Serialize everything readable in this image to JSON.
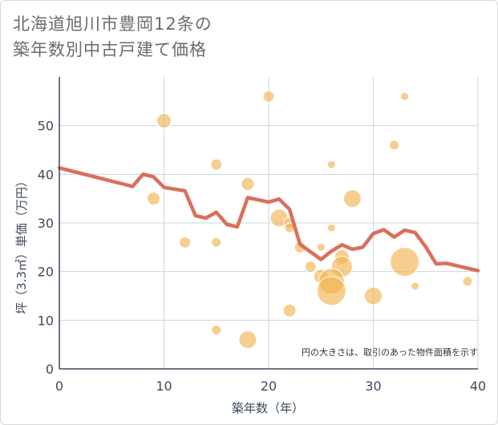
{
  "title_line1": "北海道旭川市豊岡12条の",
  "title_line2": "築年数別中古戸建て価格",
  "chart_data": {
    "type": "scatter",
    "title": "北海道旭川市豊岡12条の築年数別中古戸建て価格",
    "xlabel": "築年数（年）",
    "ylabel": "坪（3.3㎡）単価（万円）",
    "xlim": [
      0,
      40
    ],
    "ylim": [
      0,
      60
    ],
    "xticks": [
      0,
      10,
      20,
      30,
      40
    ],
    "yticks": [
      0,
      10,
      20,
      30,
      40,
      50
    ],
    "grid": true,
    "note": "円の大きさは、取引のあった物件面積を示す",
    "colors": {
      "bubble": "#f0b14a",
      "line": "#d9705a"
    },
    "bubbles": [
      {
        "x": 10,
        "y": 51,
        "size": 9
      },
      {
        "x": 20,
        "y": 56,
        "size": 7
      },
      {
        "x": 33,
        "y": 56,
        "size": 5
      },
      {
        "x": 15,
        "y": 42,
        "size": 7
      },
      {
        "x": 26,
        "y": 42,
        "size": 5
      },
      {
        "x": 32,
        "y": 46,
        "size": 6
      },
      {
        "x": 18,
        "y": 38,
        "size": 8
      },
      {
        "x": 9,
        "y": 35,
        "size": 8
      },
      {
        "x": 28,
        "y": 35,
        "size": 11
      },
      {
        "x": 21,
        "y": 31,
        "size": 11
      },
      {
        "x": 22,
        "y": 30,
        "size": 7
      },
      {
        "x": 22,
        "y": 29,
        "size": 6
      },
      {
        "x": 26,
        "y": 29,
        "size": 5
      },
      {
        "x": 12,
        "y": 26,
        "size": 7
      },
      {
        "x": 15,
        "y": 26,
        "size": 6
      },
      {
        "x": 23,
        "y": 25,
        "size": 7
      },
      {
        "x": 25,
        "y": 25,
        "size": 5
      },
      {
        "x": 27,
        "y": 23,
        "size": 9
      },
      {
        "x": 24,
        "y": 21,
        "size": 7
      },
      {
        "x": 27,
        "y": 21,
        "size": 13
      },
      {
        "x": 33,
        "y": 22,
        "size": 18
      },
      {
        "x": 25,
        "y": 19,
        "size": 9
      },
      {
        "x": 26,
        "y": 18,
        "size": 16
      },
      {
        "x": 26,
        "y": 16,
        "size": 18
      },
      {
        "x": 34,
        "y": 17,
        "size": 5
      },
      {
        "x": 39,
        "y": 18,
        "size": 6
      },
      {
        "x": 30,
        "y": 15,
        "size": 11
      },
      {
        "x": 22,
        "y": 12,
        "size": 8
      },
      {
        "x": 15,
        "y": 8,
        "size": 6
      },
      {
        "x": 18,
        "y": 6,
        "size": 11
      }
    ],
    "line": {
      "x": [
        0,
        7,
        8,
        9,
        10,
        12,
        13,
        14,
        15,
        16,
        17,
        18,
        20,
        21,
        22,
        23,
        25,
        26,
        27,
        28,
        29,
        30,
        31,
        32,
        33,
        34,
        35,
        36,
        37,
        40
      ],
      "y": [
        41.3,
        37.5,
        40.0,
        39.5,
        37.3,
        36.6,
        31.5,
        31.0,
        32.2,
        29.7,
        29.2,
        35.2,
        34.3,
        34.9,
        32.8,
        25.6,
        22.5,
        24.2,
        25.5,
        24.6,
        25.0,
        27.8,
        28.6,
        27.1,
        28.5,
        28.0,
        25.1,
        21.6,
        21.7,
        20.2
      ]
    }
  }
}
